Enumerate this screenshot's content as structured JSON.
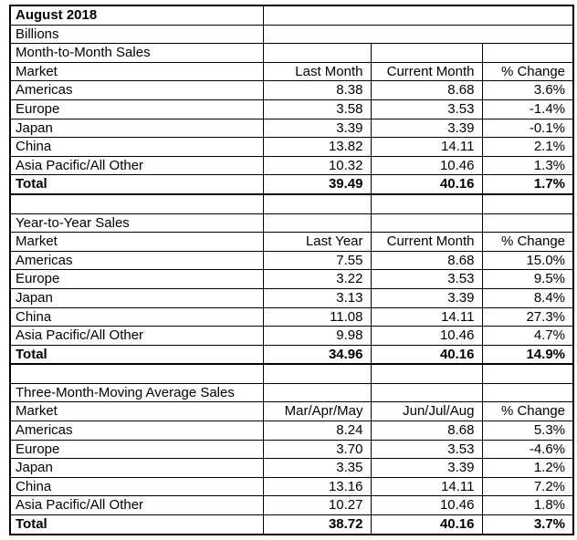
{
  "title": "August 2018",
  "units_label": "Billions",
  "text_color": "#000000",
  "border_color": "#000000",
  "background_color": "#ffffff",
  "sections": [
    {
      "name": "Month-to-Month Sales",
      "columns": [
        "Market",
        "Last Month",
        "Current Month",
        "% Change"
      ],
      "rows": [
        [
          "Americas",
          "8.38",
          "8.68",
          "3.6%"
        ],
        [
          "Europe",
          "3.58",
          "3.53",
          "-1.4%"
        ],
        [
          "Japan",
          "3.39",
          "3.39",
          "-0.1%"
        ],
        [
          "China",
          "13.82",
          "14.11",
          "2.1%"
        ],
        [
          "Asia Pacific/All Other",
          "10.32",
          "10.46",
          "1.3%"
        ]
      ],
      "total": [
        "Total",
        "39.49",
        "40.16",
        "1.7%"
      ]
    },
    {
      "name": "Year-to-Year Sales",
      "columns": [
        "Market",
        "Last Year",
        "Current Month",
        "% Change"
      ],
      "rows": [
        [
          "Americas",
          "7.55",
          "8.68",
          "15.0%"
        ],
        [
          "Europe",
          "3.22",
          "3.53",
          "9.5%"
        ],
        [
          "Japan",
          "3.13",
          "3.39",
          "8.4%"
        ],
        [
          "China",
          "11.08",
          "14.11",
          "27.3%"
        ],
        [
          "Asia Pacific/All Other",
          "9.98",
          "10.46",
          "4.7%"
        ]
      ],
      "total": [
        "Total",
        "34.96",
        "40.16",
        "14.9%"
      ]
    },
    {
      "name": "Three-Month-Moving Average Sales",
      "columns": [
        "Market",
        "Mar/Apr/May",
        "Jun/Jul/Aug",
        "% Change"
      ],
      "rows": [
        [
          "Americas",
          "8.24",
          "8.68",
          "5.3%"
        ],
        [
          "Europe",
          "3.70",
          "3.53",
          "-4.6%"
        ],
        [
          "Japan",
          "3.35",
          "3.39",
          "1.2%"
        ],
        [
          "China",
          "13.16",
          "14.11",
          "7.2%"
        ],
        [
          "Asia Pacific/All Other",
          "10.27",
          "10.46",
          "1.8%"
        ]
      ],
      "total": [
        "Total",
        "38.72",
        "40.16",
        "3.7%"
      ]
    }
  ]
}
